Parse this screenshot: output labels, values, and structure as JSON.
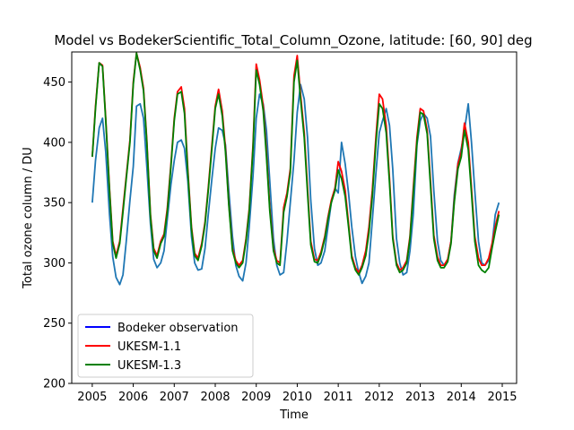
{
  "chart_data": {
    "type": "line",
    "title": "Model vs BodekerScientific_Total_Column_Ozone, latitude: [60, 90] deg",
    "xlabel": "Time",
    "ylabel": "Total ozone column / DU",
    "xlim": [
      2004.5,
      2015.35
    ],
    "ylim": [
      200,
      475
    ],
    "x_ticks": [
      2005,
      2006,
      2007,
      2008,
      2009,
      2010,
      2011,
      2012,
      2013,
      2014,
      2015
    ],
    "y_ticks": [
      200,
      250,
      300,
      350,
      400,
      450
    ],
    "grid": false,
    "legend_position": "lower-left",
    "legend": [
      {
        "label": "Bodeker observation",
        "color": "#0000ff"
      },
      {
        "label": "UKESM-1.1",
        "color": "#ff0000"
      },
      {
        "label": "UKESM-1.3",
        "color": "#008000"
      }
    ],
    "series": [
      {
        "name": "Bodeker observation",
        "color": "#1f77b4",
        "x": [
          2005.0,
          2005.08,
          2005.17,
          2005.25,
          2005.33,
          2005.42,
          2005.5,
          2005.58,
          2005.67,
          2005.75,
          2005.83,
          2005.92,
          2006.0,
          2006.08,
          2006.17,
          2006.25,
          2006.33,
          2006.42,
          2006.5,
          2006.58,
          2006.67,
          2006.75,
          2006.83,
          2006.92,
          2007.0,
          2007.08,
          2007.17,
          2007.25,
          2007.33,
          2007.42,
          2007.5,
          2007.58,
          2007.67,
          2007.75,
          2007.83,
          2007.92,
          2008.0,
          2008.08,
          2008.17,
          2008.25,
          2008.33,
          2008.42,
          2008.5,
          2008.58,
          2008.67,
          2008.75,
          2008.83,
          2008.92,
          2009.0,
          2009.08,
          2009.17,
          2009.25,
          2009.33,
          2009.42,
          2009.5,
          2009.58,
          2009.67,
          2009.75,
          2009.83,
          2009.92,
          2010.0,
          2010.08,
          2010.17,
          2010.25,
          2010.33,
          2010.42,
          2010.5,
          2010.58,
          2010.67,
          2010.75,
          2010.83,
          2010.92,
          2011.0,
          2011.08,
          2011.17,
          2011.25,
          2011.33,
          2011.42,
          2011.5,
          2011.58,
          2011.67,
          2011.75,
          2011.83,
          2011.92,
          2012.0,
          2012.08,
          2012.17,
          2012.25,
          2012.33,
          2012.42,
          2012.5,
          2012.58,
          2012.67,
          2012.75,
          2012.83,
          2012.92,
          2013.0,
          2013.08,
          2013.17,
          2013.25,
          2013.33,
          2013.42,
          2013.5,
          2013.58,
          2013.67,
          2013.75,
          2013.83,
          2013.92,
          2014.0,
          2014.08,
          2014.17,
          2014.25,
          2014.33,
          2014.42,
          2014.5,
          2014.58,
          2014.67,
          2014.75,
          2014.83,
          2014.92
        ],
        "y": [
          350,
          385,
          412,
          420,
          392,
          340,
          305,
          288,
          282,
          290,
          318,
          352,
          380,
          430,
          432,
          420,
          380,
          332,
          303,
          296,
          300,
          310,
          336,
          365,
          385,
          400,
          402,
          395,
          368,
          322,
          300,
          294,
          295,
          312,
          340,
          370,
          395,
          412,
          410,
          398,
          360,
          322,
          298,
          289,
          285,
          300,
          330,
          372,
          420,
          440,
          432,
          410,
          368,
          320,
          298,
          290,
          292,
          318,
          350,
          385,
          425,
          448,
          436,
          404,
          352,
          312,
          298,
          300,
          310,
          330,
          350,
          362,
          358,
          400,
          382,
          358,
          330,
          305,
          292,
          283,
          289,
          300,
          335,
          375,
          408,
          418,
          428,
          414,
          378,
          320,
          300,
          290,
          292,
          310,
          340,
          398,
          418,
          424,
          420,
          405,
          360,
          318,
          302,
          298,
          302,
          318,
          356,
          383,
          395,
          410,
          432,
          400,
          360,
          318,
          300,
          298,
          302,
          315,
          340,
          350
        ]
      },
      {
        "name": "UKESM-1.1",
        "color": "#ff0000",
        "x": [
          2005.0,
          2005.08,
          2005.17,
          2005.25,
          2005.33,
          2005.42,
          2005.5,
          2005.58,
          2005.67,
          2005.75,
          2005.83,
          2005.92,
          2006.0,
          2006.08,
          2006.17,
          2006.25,
          2006.33,
          2006.42,
          2006.5,
          2006.58,
          2006.67,
          2006.75,
          2006.83,
          2006.92,
          2007.0,
          2007.08,
          2007.17,
          2007.25,
          2007.33,
          2007.42,
          2007.5,
          2007.58,
          2007.67,
          2007.75,
          2007.83,
          2007.92,
          2008.0,
          2008.08,
          2008.17,
          2008.25,
          2008.33,
          2008.42,
          2008.5,
          2008.58,
          2008.67,
          2008.75,
          2008.83,
          2008.92,
          2009.0,
          2009.08,
          2009.17,
          2009.25,
          2009.33,
          2009.42,
          2009.5,
          2009.58,
          2009.67,
          2009.75,
          2009.83,
          2009.92,
          2010.0,
          2010.08,
          2010.17,
          2010.25,
          2010.33,
          2010.42,
          2010.5,
          2010.58,
          2010.67,
          2010.75,
          2010.83,
          2010.92,
          2011.0,
          2011.08,
          2011.17,
          2011.25,
          2011.33,
          2011.42,
          2011.5,
          2011.58,
          2011.67,
          2011.75,
          2011.83,
          2011.92,
          2012.0,
          2012.08,
          2012.17,
          2012.25,
          2012.33,
          2012.42,
          2012.5,
          2012.58,
          2012.67,
          2012.75,
          2012.83,
          2012.92,
          2013.0,
          2013.08,
          2013.17,
          2013.25,
          2013.33,
          2013.42,
          2013.5,
          2013.58,
          2013.67,
          2013.75,
          2013.83,
          2013.92,
          2014.0,
          2014.08,
          2014.17,
          2014.25,
          2014.33,
          2014.42,
          2014.5,
          2014.58,
          2014.67,
          2014.75,
          2014.83,
          2014.92
        ],
        "y": [
          388,
          430,
          466,
          464,
          420,
          362,
          318,
          306,
          318,
          345,
          372,
          402,
          450,
          474,
          462,
          445,
          402,
          340,
          312,
          306,
          318,
          324,
          345,
          382,
          420,
          442,
          446,
          428,
          378,
          330,
          308,
          304,
          316,
          334,
          362,
          398,
          430,
          444,
          426,
          395,
          350,
          312,
          302,
          298,
          302,
          320,
          345,
          398,
          465,
          452,
          430,
          392,
          346,
          312,
          302,
          300,
          346,
          358,
          378,
          455,
          472,
          440,
          408,
          362,
          318,
          303,
          302,
          309,
          322,
          338,
          352,
          362,
          384,
          376,
          360,
          333,
          306,
          296,
          292,
          298,
          310,
          330,
          360,
          405,
          440,
          436,
          414,
          370,
          322,
          300,
          294,
          296,
          302,
          322,
          362,
          404,
          428,
          426,
          410,
          368,
          323,
          305,
          298,
          298,
          303,
          318,
          352,
          382,
          392,
          416,
          400,
          362,
          322,
          304,
          298,
          298,
          304,
          316,
          330,
          343
        ]
      },
      {
        "name": "UKESM-1.3",
        "color": "#008000",
        "x": [
          2005.0,
          2005.08,
          2005.17,
          2005.25,
          2005.33,
          2005.42,
          2005.5,
          2005.58,
          2005.67,
          2005.75,
          2005.83,
          2005.92,
          2006.0,
          2006.08,
          2006.17,
          2006.25,
          2006.33,
          2006.42,
          2006.5,
          2006.58,
          2006.67,
          2006.75,
          2006.83,
          2006.92,
          2007.0,
          2007.08,
          2007.17,
          2007.25,
          2007.33,
          2007.42,
          2007.5,
          2007.58,
          2007.67,
          2007.75,
          2007.83,
          2007.92,
          2008.0,
          2008.08,
          2008.17,
          2008.25,
          2008.33,
          2008.42,
          2008.5,
          2008.58,
          2008.67,
          2008.75,
          2008.83,
          2008.92,
          2009.0,
          2009.08,
          2009.17,
          2009.25,
          2009.33,
          2009.42,
          2009.5,
          2009.58,
          2009.67,
          2009.75,
          2009.83,
          2009.92,
          2010.0,
          2010.08,
          2010.17,
          2010.25,
          2010.33,
          2010.42,
          2010.5,
          2010.58,
          2010.67,
          2010.75,
          2010.83,
          2010.92,
          2011.0,
          2011.08,
          2011.17,
          2011.25,
          2011.33,
          2011.42,
          2011.5,
          2011.58,
          2011.67,
          2011.75,
          2011.83,
          2011.92,
          2012.0,
          2012.08,
          2012.17,
          2012.25,
          2012.33,
          2012.42,
          2012.5,
          2012.58,
          2012.67,
          2012.75,
          2012.83,
          2012.92,
          2013.0,
          2013.08,
          2013.17,
          2013.25,
          2013.33,
          2013.42,
          2013.5,
          2013.58,
          2013.67,
          2013.75,
          2013.83,
          2013.92,
          2014.0,
          2014.08,
          2014.17,
          2014.25,
          2014.33,
          2014.42,
          2014.5,
          2014.58,
          2014.67,
          2014.75,
          2014.83,
          2014.92
        ],
        "y": [
          388,
          428,
          466,
          463,
          418,
          360,
          316,
          304,
          316,
          342,
          370,
          400,
          448,
          474,
          460,
          443,
          400,
          338,
          310,
          304,
          316,
          322,
          342,
          380,
          418,
          440,
          442,
          424,
          375,
          328,
          306,
          302,
          314,
          332,
          360,
          395,
          428,
          440,
          422,
          392,
          348,
          310,
          300,
          296,
          300,
          318,
          343,
          395,
          460,
          448,
          426,
          388,
          343,
          310,
          300,
          298,
          342,
          355,
          375,
          450,
          468,
          436,
          404,
          358,
          315,
          301,
          300,
          307,
          320,
          336,
          350,
          360,
          377,
          370,
          355,
          330,
          304,
          294,
          290,
          296,
          306,
          325,
          355,
          400,
          432,
          428,
          408,
          366,
          320,
          298,
          292,
          294,
          300,
          320,
          358,
          400,
          425,
          423,
          407,
          364,
          320,
          302,
          296,
          296,
          301,
          316,
          350,
          378,
          388,
          410,
          394,
          358,
          318,
          298,
          294,
          292,
          296,
          312,
          326,
          340
        ]
      }
    ]
  }
}
